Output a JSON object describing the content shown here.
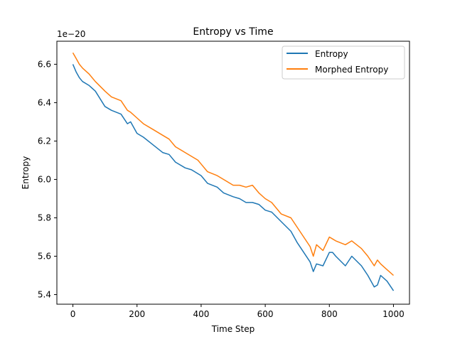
{
  "chart_data": {
    "type": "line",
    "title": "Entropy vs Time",
    "xlabel": "Time Step",
    "ylabel": "Entropy",
    "y_offset_label": "1e−20",
    "xlim": [
      -50,
      1050
    ],
    "ylim": [
      5.35,
      6.72
    ],
    "xticks": [
      0,
      200,
      400,
      600,
      800,
      1000
    ],
    "xtick_labels": [
      "0",
      "200",
      "400",
      "600",
      "800",
      "1000"
    ],
    "yticks": [
      5.4,
      5.6,
      5.8,
      6.0,
      6.2,
      6.4,
      6.6
    ],
    "ytick_labels": [
      "5.4",
      "5.6",
      "5.8",
      "6.0",
      "6.2",
      "6.4",
      "6.6"
    ],
    "grid": false,
    "legend_position": "top-right",
    "series": [
      {
        "name": "Entropy",
        "color": "#1f77b4",
        "x": [
          0,
          10,
          20,
          30,
          50,
          70,
          100,
          120,
          150,
          170,
          180,
          200,
          220,
          250,
          280,
          300,
          320,
          350,
          370,
          390,
          400,
          420,
          450,
          470,
          500,
          520,
          540,
          560,
          580,
          600,
          620,
          650,
          680,
          700,
          720,
          740,
          750,
          760,
          780,
          800,
          810,
          820,
          850,
          870,
          900,
          920,
          940,
          950,
          960,
          980,
          1000
        ],
        "values": [
          6.6,
          6.56,
          6.53,
          6.51,
          6.49,
          6.46,
          6.38,
          6.36,
          6.34,
          6.29,
          6.3,
          6.24,
          6.22,
          6.18,
          6.14,
          6.13,
          6.09,
          6.06,
          6.05,
          6.03,
          6.02,
          5.98,
          5.96,
          5.93,
          5.91,
          5.9,
          5.88,
          5.88,
          5.87,
          5.84,
          5.83,
          5.78,
          5.73,
          5.67,
          5.62,
          5.57,
          5.52,
          5.56,
          5.55,
          5.62,
          5.62,
          5.6,
          5.55,
          5.6,
          5.55,
          5.5,
          5.44,
          5.45,
          5.5,
          5.47,
          5.42
        ]
      },
      {
        "name": "Morphed Entropy",
        "color": "#ff7f0e",
        "x": [
          0,
          10,
          20,
          30,
          50,
          70,
          100,
          120,
          150,
          170,
          180,
          200,
          220,
          250,
          280,
          300,
          320,
          350,
          370,
          390,
          400,
          420,
          450,
          470,
          500,
          520,
          540,
          560,
          580,
          600,
          620,
          650,
          680,
          700,
          720,
          740,
          750,
          760,
          780,
          800,
          810,
          820,
          850,
          870,
          900,
          920,
          940,
          950,
          960,
          980,
          1000
        ],
        "values": [
          6.66,
          6.63,
          6.6,
          6.58,
          6.55,
          6.51,
          6.46,
          6.43,
          6.41,
          6.36,
          6.35,
          6.32,
          6.29,
          6.26,
          6.23,
          6.21,
          6.17,
          6.14,
          6.12,
          6.1,
          6.08,
          6.04,
          6.02,
          6.0,
          5.97,
          5.97,
          5.96,
          5.97,
          5.93,
          5.9,
          5.88,
          5.82,
          5.8,
          5.75,
          5.7,
          5.65,
          5.6,
          5.66,
          5.63,
          5.7,
          5.69,
          5.68,
          5.66,
          5.68,
          5.64,
          5.6,
          5.55,
          5.58,
          5.56,
          5.53,
          5.5
        ]
      }
    ]
  }
}
